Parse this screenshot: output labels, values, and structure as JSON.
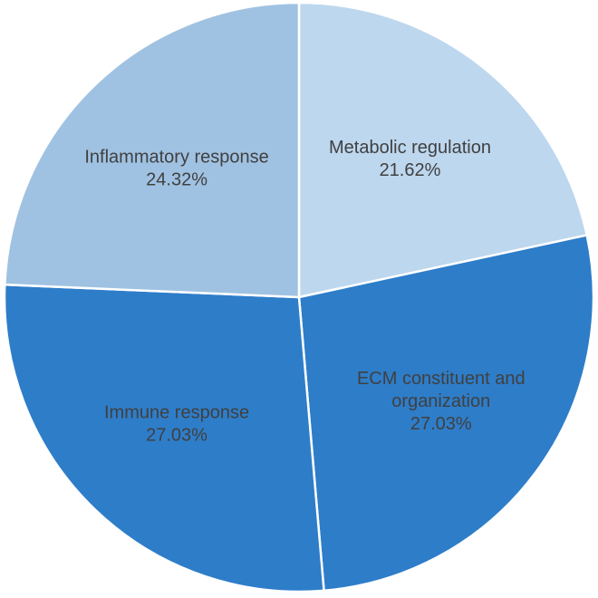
{
  "chart_data": {
    "type": "pie",
    "slices": [
      {
        "label_lines": [
          "Metabolic regulation"
        ],
        "value": 21.62,
        "value_label": "21.62%",
        "color": "#BDD7EE"
      },
      {
        "label_lines": [
          "ECM constituent and",
          "organization"
        ],
        "value": 27.03,
        "value_label": "27.03%",
        "color": "#2E7DC9"
      },
      {
        "label_lines": [
          "Immune response"
        ],
        "value": 27.03,
        "value_label": "27.03%",
        "color": "#2E7DC9"
      },
      {
        "label_lines": [
          "Inflammatory response"
        ],
        "value": 24.32,
        "value_label": "24.32%",
        "color": "#A0C2E2"
      }
    ],
    "start_angle_deg": 0,
    "direction": "clockwise",
    "slice_border_color": "#ffffff",
    "legend": "none"
  }
}
